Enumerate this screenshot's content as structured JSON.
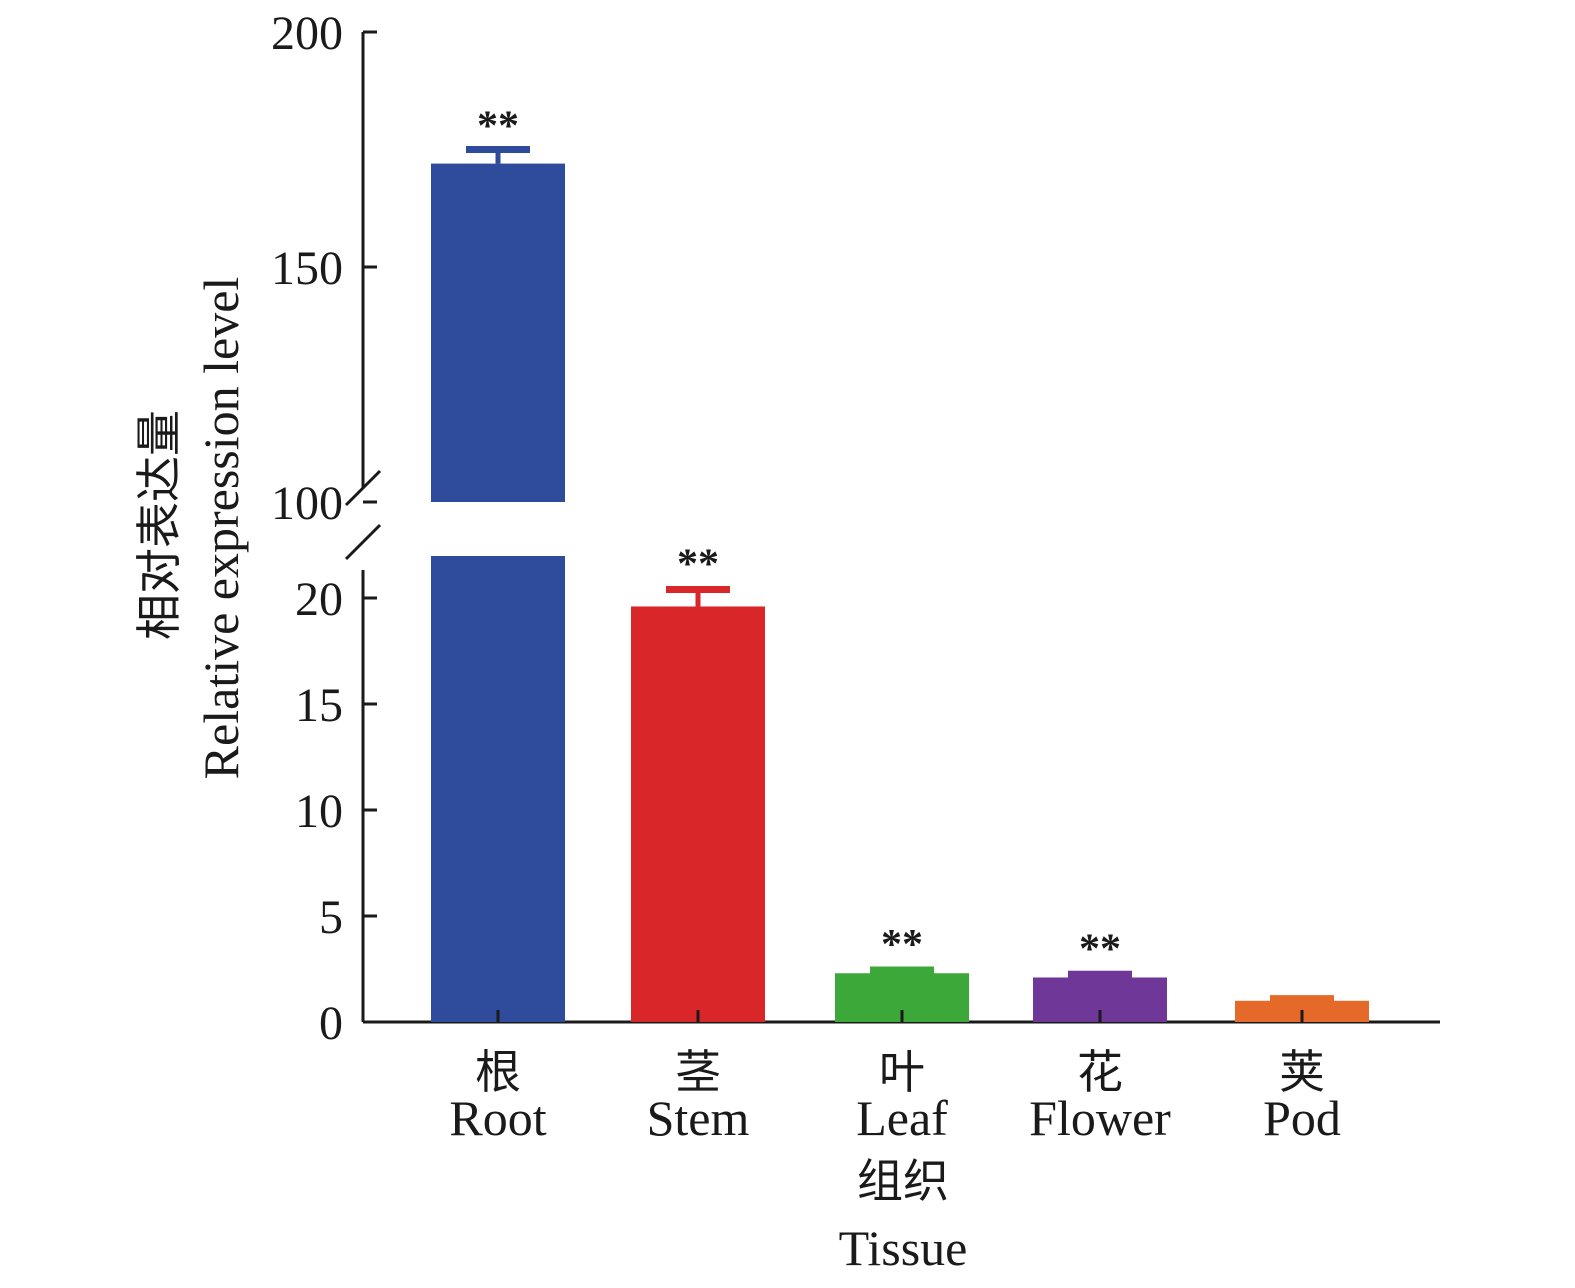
{
  "chart_data": {
    "type": "bar",
    "categories": [
      {
        "cn": "根",
        "en": "Root"
      },
      {
        "cn": "茎",
        "en": "Stem"
      },
      {
        "cn": "叶",
        "en": "Leaf"
      },
      {
        "cn": "花",
        "en": "Flower"
      },
      {
        "cn": "荚",
        "en": "Pod"
      }
    ],
    "values": [
      172,
      19.6,
      2.3,
      2.1,
      1.0
    ],
    "errors": [
      3,
      0.8,
      0.15,
      0.15,
      0.1
    ],
    "significance": [
      "**",
      "**",
      "**",
      "**",
      ""
    ],
    "colors": [
      "#2f4b9b",
      "#d92628",
      "#3ca83a",
      "#6f3797",
      "#e56a2a"
    ],
    "xlabel_cn": "组织",
    "xlabel_en": "Tissue",
    "ylabel_cn": "相对表达量",
    "ylabel_en": "Relative expression level",
    "y_axis_break": {
      "lower_range": [
        0,
        22
      ],
      "upper_range": [
        100,
        200
      ],
      "lower_ticks": [
        0,
        5,
        10,
        15,
        20
      ],
      "upper_ticks": [
        100,
        150,
        200
      ]
    }
  }
}
